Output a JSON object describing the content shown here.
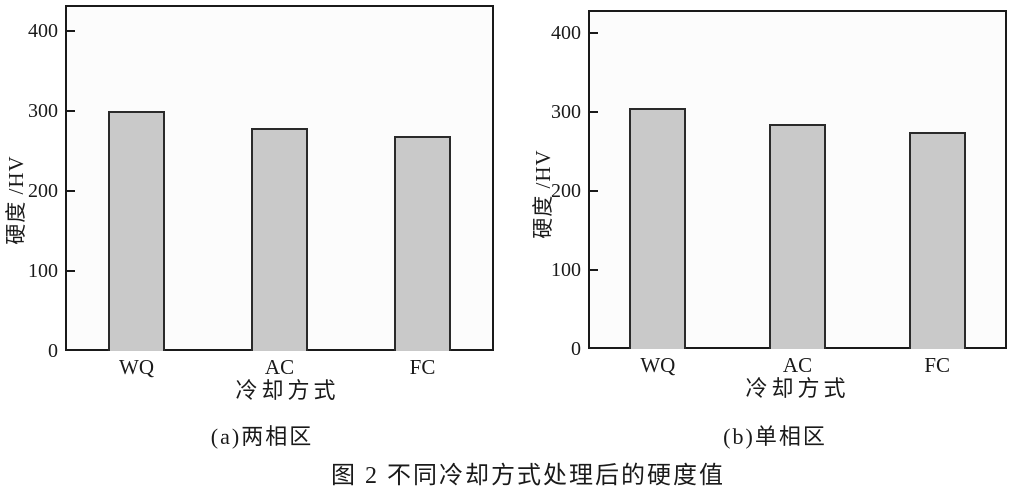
{
  "figure": {
    "caption": "图 2 不同冷却方式处理后的硬度值"
  },
  "chart_data": [
    {
      "type": "bar",
      "subcaption": "(a)两相区",
      "categories": [
        "WQ",
        "AC",
        "FC"
      ],
      "values": [
        300,
        278,
        268
      ],
      "xlabel": "冷却方式",
      "ylabel": "硬度 /HV",
      "yticks": [
        0,
        100,
        200,
        300,
        400
      ],
      "ylim": [
        0,
        432
      ],
      "grid": false,
      "legend": "none",
      "bar_fill_color": "#c9c9c9",
      "bar_border_color": "#2a2a2a",
      "frame_color": "#1a1a1a"
    },
    {
      "type": "bar",
      "subcaption": "(b)单相区",
      "categories": [
        "WQ",
        "AC",
        "FC"
      ],
      "values": [
        305,
        285,
        274
      ],
      "xlabel": "冷却方式",
      "ylabel": "硬度 /HV",
      "yticks": [
        0,
        100,
        200,
        300,
        400
      ],
      "ylim": [
        0,
        429
      ],
      "grid": false,
      "legend": "none",
      "bar_fill_color": "#c9c9c9",
      "bar_border_color": "#2a2a2a",
      "frame_color": "#1a1a1a"
    }
  ]
}
